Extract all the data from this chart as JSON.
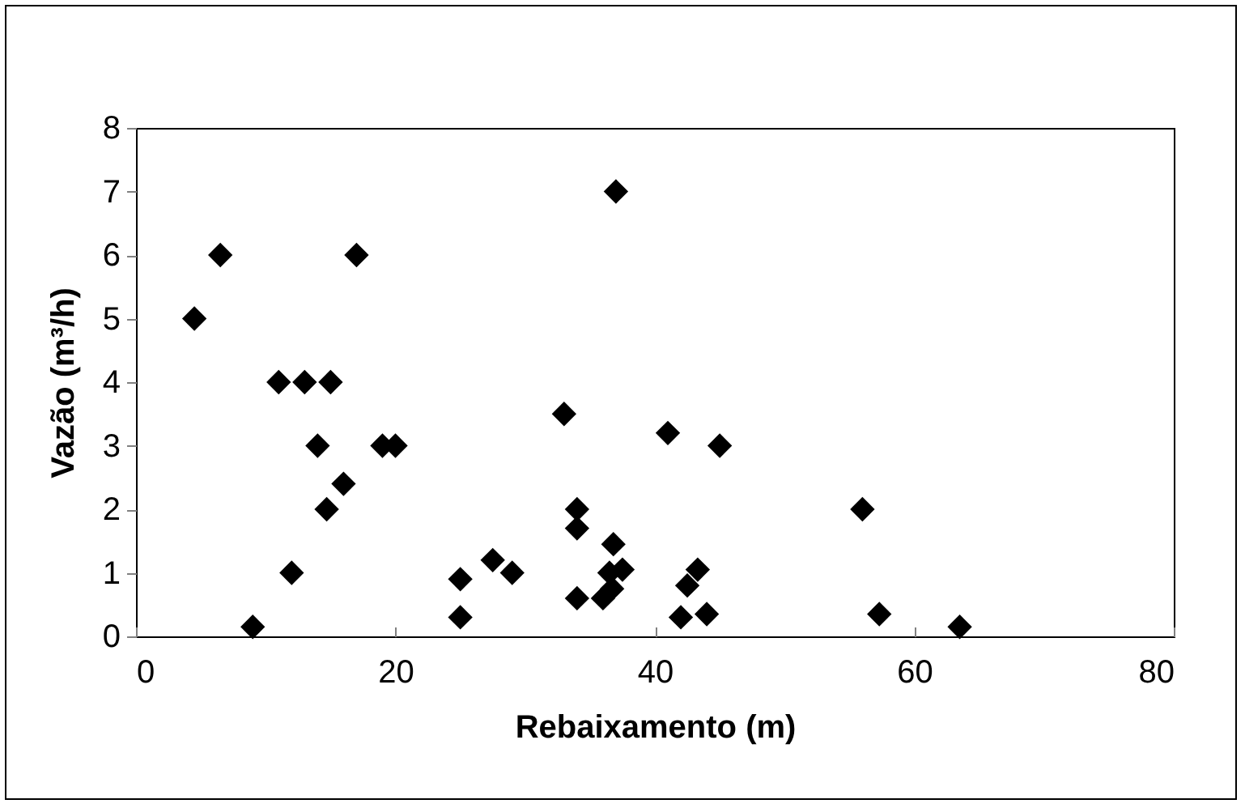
{
  "chart_data": {
    "type": "scatter",
    "xlabel": "Rebaixamento (m)",
    "ylabel": "Vazão (m³/h)",
    "x": [
      4.5,
      6.5,
      9,
      11,
      12,
      13,
      14,
      15,
      14.7,
      16,
      17,
      19,
      20,
      25,
      25,
      27.5,
      29,
      33,
      34,
      34,
      34,
      36,
      37,
      36.8,
      36.5,
      37.5,
      36.7,
      41,
      42,
      42.5,
      43.3,
      44,
      45,
      56,
      57.3,
      63.5
    ],
    "series": [
      {
        "color": "#000000",
        "values": [
          5,
          6,
          0.15,
          4,
          1,
          4,
          3,
          4,
          2,
          2.4,
          6,
          3,
          3,
          0.9,
          0.3,
          1.2,
          1,
          3.5,
          2,
          1.7,
          0.6,
          0.6,
          7,
          1.45,
          1,
          1.05,
          0.75,
          3.2,
          0.3,
          0.8,
          1.05,
          0.35,
          3,
          2,
          0.35,
          0.15
        ]
      }
    ],
    "xlim": [
      0,
      80
    ],
    "xticks": [
      0,
      20,
      40,
      60,
      80
    ],
    "ylim": [
      0,
      8
    ],
    "yticks": [
      0,
      1,
      2,
      3,
      4,
      5,
      6,
      7,
      8
    ],
    "marker": "diamond",
    "grid": false,
    "legend": false
  }
}
